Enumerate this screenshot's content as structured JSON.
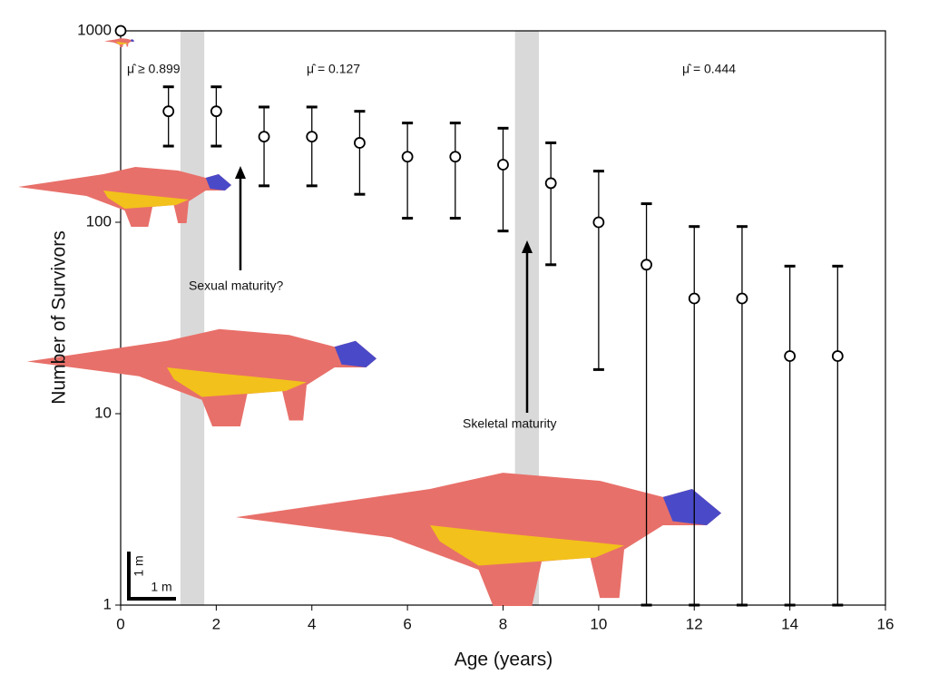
{
  "chart_data": {
    "type": "scatter",
    "x": [
      0,
      1,
      2,
      3,
      4,
      5,
      6,
      7,
      8,
      9,
      10,
      11,
      12,
      13,
      14,
      15
    ],
    "values": [
      1000,
      380,
      380,
      280,
      280,
      260,
      220,
      220,
      200,
      160,
      100,
      60,
      40,
      40,
      20,
      20
    ],
    "error_low": [
      null,
      250,
      250,
      155,
      155,
      140,
      105,
      105,
      90,
      60,
      17,
      1,
      1,
      1,
      1,
      1
    ],
    "error_high": [
      null,
      510,
      510,
      400,
      400,
      380,
      330,
      330,
      310,
      260,
      185,
      125,
      95,
      95,
      59,
      59
    ],
    "color": "#000000",
    "bands": [
      [
        1.25,
        1.75
      ],
      [
        8.25,
        8.75
      ]
    ],
    "band_color": "#d9d9d9",
    "xlim": [
      0,
      16
    ],
    "xticks": [
      0,
      2,
      4,
      6,
      8,
      10,
      12,
      14,
      16
    ],
    "ylim": [
      1,
      1000
    ],
    "yticks": [
      1,
      10,
      100,
      1000
    ],
    "log_y": true,
    "xlabel": "Age (years)",
    "ylabel": "Number of Survivors",
    "annotations": [
      "μ̂ ≥ 0.899",
      "μ̂ = 0.127",
      "μ̂ = 0.444",
      "Sexual maturity?",
      "Skeletal maturity",
      "1 m",
      "1 m"
    ]
  }
}
